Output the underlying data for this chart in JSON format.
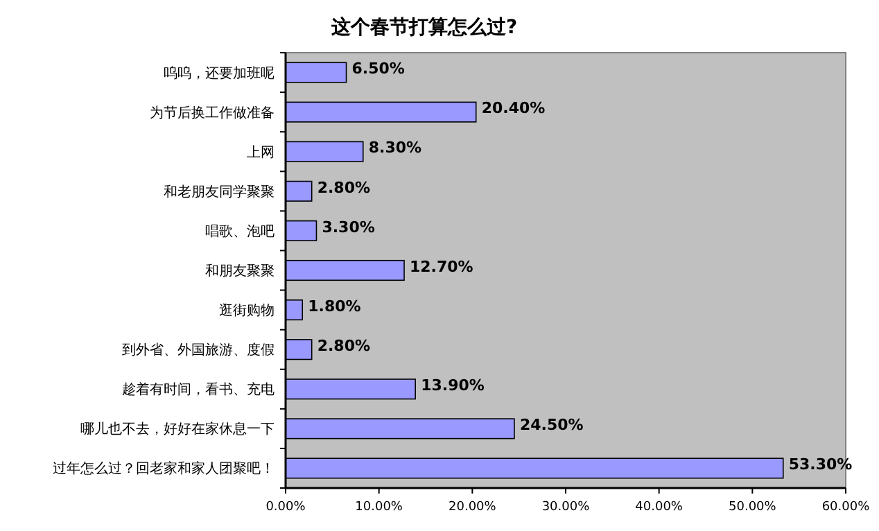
{
  "chart_data": {
    "type": "bar",
    "orientation": "horizontal",
    "title": "这个春节打算怎么过?",
    "categories": [
      "呜呜，还要加班呢",
      "为节后换工作做准备",
      "上网",
      "和老朋友同学聚聚",
      "唱歌、泡吧",
      "和朋友聚聚",
      "逛街购物",
      "到外省、外国旅游、度假",
      "趁着有时间，看书、充电",
      "哪儿也不去，好好在家休息一下",
      "过年怎么过？回老家和家人团聚吧！"
    ],
    "values": [
      6.5,
      20.4,
      8.3,
      2.8,
      3.3,
      12.7,
      1.8,
      2.8,
      13.9,
      24.5,
      53.3
    ],
    "value_labels": [
      "6.50%",
      "20.40%",
      "8.30%",
      "2.80%",
      "3.30%",
      "12.70%",
      "1.80%",
      "2.80%",
      "13.90%",
      "24.50%",
      "53.30%"
    ],
    "color": "#9999ff",
    "xlim": [
      0,
      60
    ],
    "xticks": [
      {
        "value": 0,
        "label": "0.00%"
      },
      {
        "value": 10,
        "label": "10.00%"
      },
      {
        "value": 20,
        "label": "20.00%"
      },
      {
        "value": 30,
        "label": "30.00%"
      },
      {
        "value": 40,
        "label": "40.00%"
      },
      {
        "value": 50,
        "label": "50.00%"
      },
      {
        "value": 60,
        "label": "60.00%"
      }
    ],
    "grid": false
  }
}
